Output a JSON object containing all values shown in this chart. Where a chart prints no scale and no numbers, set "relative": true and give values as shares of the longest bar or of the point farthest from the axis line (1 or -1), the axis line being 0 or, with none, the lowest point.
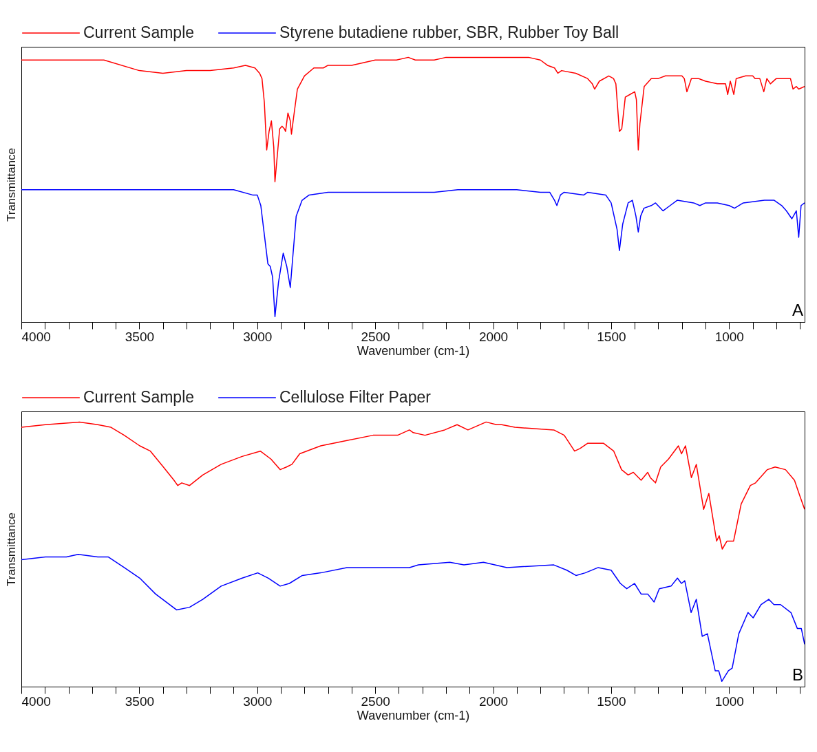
{
  "chart_data": [
    {
      "type": "line",
      "relative": true,
      "xlabel": "Wavenumber (cm-1)",
      "ylabel": "Transmittance",
      "legend": "top",
      "grid": false,
      "annotations": [
        "A"
      ],
      "xlim": [
        4000,
        680
      ],
      "xticks": [
        4000,
        {
          "value": 3900,
          "label": null
        },
        {
          "value": 3800,
          "label": null
        },
        {
          "value": 3700,
          "label": null
        },
        {
          "value": 3600,
          "label": null
        },
        3500,
        {
          "value": 3400,
          "label": null
        },
        {
          "value": 3300,
          "label": null
        },
        {
          "value": 3200,
          "label": null
        },
        {
          "value": 3100,
          "label": null
        },
        3000,
        {
          "value": 2900,
          "label": null
        },
        {
          "value": 2800,
          "label": null
        },
        {
          "value": 2700,
          "label": null
        },
        {
          "value": 2600,
          "label": null
        },
        2500,
        {
          "value": 2400,
          "label": null
        },
        {
          "value": 2300,
          "label": null
        },
        {
          "value": 2200,
          "label": null
        },
        {
          "value": 2100,
          "label": null
        },
        2000,
        {
          "value": 1900,
          "label": null
        },
        {
          "value": 1800,
          "label": null
        },
        {
          "value": 1700,
          "label": null
        },
        {
          "value": 1600,
          "label": null
        },
        1500,
        {
          "value": 1400,
          "label": null
        },
        {
          "value": 1300,
          "label": null
        },
        {
          "value": 1200,
          "label": null
        },
        {
          "value": 1100,
          "label": null
        },
        1000,
        {
          "value": 900,
          "label": null
        },
        {
          "value": 800,
          "label": null
        },
        {
          "value": 700,
          "label": null
        }
      ],
      "series": [
        {
          "name": "Current Sample",
          "color": "#ff0000",
          "x": [
            4000,
            3800,
            3700,
            3650,
            3500,
            3400,
            3300,
            3200,
            3100,
            3050,
            3010,
            2990,
            2980,
            2970,
            2960,
            2950,
            2940,
            2930,
            2925,
            2915,
            2905,
            2895,
            2885,
            2880,
            2870,
            2860,
            2855,
            2845,
            2830,
            2800,
            2760,
            2720,
            2700,
            2600,
            2500,
            2410,
            2360,
            2330,
            2250,
            2200,
            2150,
            2050,
            2000,
            1950,
            1850,
            1800,
            1770,
            1740,
            1726,
            1710,
            1650,
            1600,
            1580,
            1570,
            1550,
            1510,
            1490,
            1480,
            1465,
            1455,
            1440,
            1420,
            1400,
            1393,
            1385,
            1378,
            1360,
            1330,
            1300,
            1270,
            1200,
            1190,
            1179,
            1160,
            1130,
            1100,
            1050,
            1015,
            1006,
            995,
            980,
            970,
            930,
            900,
            890,
            870,
            853,
            840,
            825,
            800,
            740,
            729,
            715,
            705,
            680
          ],
          "values": [
            0.99,
            0.99,
            0.99,
            0.99,
            0.95,
            0.94,
            0.95,
            0.95,
            0.96,
            0.97,
            0.96,
            0.94,
            0.92,
            0.83,
            0.65,
            0.72,
            0.76,
            0.66,
            0.53,
            0.63,
            0.73,
            0.74,
            0.73,
            0.72,
            0.79,
            0.76,
            0.71,
            0.78,
            0.88,
            0.93,
            0.96,
            0.96,
            0.97,
            0.97,
            0.99,
            0.99,
            1.0,
            0.99,
            0.99,
            1.0,
            1.0,
            1.0,
            1.0,
            1.0,
            1.0,
            0.99,
            0.97,
            0.96,
            0.94,
            0.95,
            0.94,
            0.92,
            0.9,
            0.88,
            0.91,
            0.93,
            0.92,
            0.9,
            0.72,
            0.73,
            0.85,
            0.86,
            0.87,
            0.84,
            0.65,
            0.75,
            0.89,
            0.92,
            0.92,
            0.93,
            0.93,
            0.92,
            0.87,
            0.92,
            0.92,
            0.91,
            0.9,
            0.9,
            0.86,
            0.91,
            0.86,
            0.92,
            0.93,
            0.93,
            0.92,
            0.92,
            0.87,
            0.92,
            0.9,
            0.92,
            0.92,
            0.88,
            0.89,
            0.88,
            0.89
          ]
        },
        {
          "name": "Styrene butadiene rubber, SBR, Rubber Toy Ball",
          "color": "#0000ff",
          "x": [
            4000,
            3700,
            3300,
            3100,
            3020,
            3000,
            2985,
            2970,
            2955,
            2945,
            2935,
            2925,
            2910,
            2890,
            2875,
            2860,
            2850,
            2835,
            2810,
            2780,
            2700,
            2600,
            2500,
            2400,
            2250,
            2150,
            2000,
            1900,
            1800,
            1760,
            1740,
            1730,
            1715,
            1700,
            1616,
            1600,
            1523,
            1500,
            1475,
            1465,
            1451,
            1428,
            1410,
            1395,
            1385,
            1375,
            1361,
            1330,
            1312,
            1280,
            1250,
            1220,
            1150,
            1124,
            1100,
            1050,
            1000,
            977,
            940,
            850,
            809,
            777,
            757,
            734,
            715,
            705,
            695,
            680
          ],
          "values": [
            0.5,
            0.5,
            0.5,
            0.5,
            0.48,
            0.48,
            0.44,
            0.33,
            0.22,
            0.21,
            0.17,
            0.02,
            0.15,
            0.26,
            0.21,
            0.13,
            0.24,
            0.4,
            0.46,
            0.48,
            0.49,
            0.49,
            0.49,
            0.49,
            0.49,
            0.5,
            0.5,
            0.5,
            0.49,
            0.49,
            0.46,
            0.44,
            0.48,
            0.49,
            0.48,
            0.49,
            0.48,
            0.45,
            0.35,
            0.27,
            0.37,
            0.45,
            0.46,
            0.4,
            0.34,
            0.4,
            0.43,
            0.44,
            0.45,
            0.42,
            0.44,
            0.46,
            0.45,
            0.44,
            0.45,
            0.45,
            0.44,
            0.43,
            0.45,
            0.46,
            0.46,
            0.44,
            0.42,
            0.39,
            0.42,
            0.32,
            0.44,
            0.45
          ]
        }
      ]
    },
    {
      "type": "line",
      "relative": true,
      "xlabel": "Wavenumber (cm-1)",
      "ylabel": "Transmittance",
      "legend": "top",
      "grid": false,
      "annotations": [
        "B"
      ],
      "xlim": [
        4000,
        680
      ],
      "xticks": [
        4000,
        {
          "value": 3900,
          "label": null
        },
        {
          "value": 3800,
          "label": null
        },
        {
          "value": 3700,
          "label": null
        },
        {
          "value": 3600,
          "label": null
        },
        3500,
        {
          "value": 3400,
          "label": null
        },
        {
          "value": 3300,
          "label": null
        },
        {
          "value": 3200,
          "label": null
        },
        {
          "value": 3100,
          "label": null
        },
        3000,
        {
          "value": 2900,
          "label": null
        },
        {
          "value": 2800,
          "label": null
        },
        {
          "value": 2700,
          "label": null
        },
        {
          "value": 2600,
          "label": null
        },
        2500,
        {
          "value": 2400,
          "label": null
        },
        {
          "value": 2300,
          "label": null
        },
        {
          "value": 2200,
          "label": null
        },
        {
          "value": 2100,
          "label": null
        },
        2000,
        {
          "value": 1900,
          "label": null
        },
        {
          "value": 1800,
          "label": null
        },
        {
          "value": 1700,
          "label": null
        },
        {
          "value": 1600,
          "label": null
        },
        1500,
        {
          "value": 1400,
          "label": null
        },
        {
          "value": 1300,
          "label": null
        },
        {
          "value": 1200,
          "label": null
        },
        {
          "value": 1100,
          "label": null
        },
        1000,
        {
          "value": 900,
          "label": null
        },
        {
          "value": 800,
          "label": null
        },
        {
          "value": 700,
          "label": null
        }
      ],
      "series": [
        {
          "name": "Current Sample",
          "color": "#ff0000",
          "x": [
            4000,
            3898,
            3753,
            3676,
            3620,
            3564,
            3498,
            3453,
            3398,
            3353,
            3337,
            3320,
            3287,
            3231,
            3153,
            3064,
            2987,
            2942,
            2903,
            2876,
            2853,
            2820,
            2731,
            2620,
            2509,
            2405,
            2355,
            2339,
            2289,
            2206,
            2153,
            2107,
            2030,
            1986,
            1964,
            1908,
            1743,
            1699,
            1655,
            1632,
            1599,
            1533,
            1489,
            1456,
            1428,
            1406,
            1373,
            1345,
            1334,
            1312,
            1290,
            1257,
            1215,
            1202,
            1185,
            1160,
            1139,
            1108,
            1086,
            1053,
            1042,
            1029,
            1009,
            981,
            949,
            910,
            888,
            838,
            805,
            761,
            723,
            700,
            680
          ],
          "values": [
            0.98,
            0.99,
            1.0,
            0.99,
            0.98,
            0.95,
            0.91,
            0.89,
            0.83,
            0.78,
            0.76,
            0.77,
            0.76,
            0.8,
            0.84,
            0.87,
            0.89,
            0.86,
            0.82,
            0.83,
            0.84,
            0.88,
            0.91,
            0.93,
            0.95,
            0.95,
            0.97,
            0.96,
            0.95,
            0.97,
            0.99,
            0.97,
            1.0,
            0.99,
            0.99,
            0.98,
            0.97,
            0.95,
            0.89,
            0.9,
            0.92,
            0.92,
            0.89,
            0.82,
            0.8,
            0.81,
            0.78,
            0.81,
            0.79,
            0.77,
            0.83,
            0.86,
            0.91,
            0.88,
            0.91,
            0.79,
            0.84,
            0.67,
            0.73,
            0.55,
            0.57,
            0.52,
            0.55,
            0.55,
            0.69,
            0.76,
            0.77,
            0.82,
            0.83,
            0.82,
            0.78,
            0.72,
            0.67
          ]
        },
        {
          "name": "Cellulose Filter Paper",
          "color": "#0000ff",
          "x": [
            4000,
            3898,
            3809,
            3759,
            3676,
            3631,
            3564,
            3498,
            3431,
            3342,
            3287,
            3231,
            3153,
            3064,
            2998,
            2953,
            2903,
            2864,
            2809,
            2731,
            2620,
            2509,
            2405,
            2355,
            2317,
            2184,
            2124,
            2041,
            1942,
            1743,
            1688,
            1649,
            1610,
            1555,
            1500,
            1461,
            1434,
            1401,
            1373,
            1345,
            1318,
            1296,
            1246,
            1219,
            1202,
            1188,
            1161,
            1139,
            1114,
            1092,
            1059,
            1044,
            1031,
            1003,
            987,
            959,
            920,
            898,
            865,
            832,
            810,
            782,
            738,
            711,
            694,
            680
          ],
          "values": [
            0.48,
            0.49,
            0.49,
            0.5,
            0.49,
            0.49,
            0.45,
            0.41,
            0.35,
            0.29,
            0.3,
            0.33,
            0.38,
            0.41,
            0.43,
            0.41,
            0.38,
            0.39,
            0.42,
            0.43,
            0.45,
            0.45,
            0.45,
            0.45,
            0.46,
            0.47,
            0.46,
            0.47,
            0.45,
            0.46,
            0.44,
            0.42,
            0.43,
            0.45,
            0.44,
            0.39,
            0.37,
            0.39,
            0.35,
            0.35,
            0.32,
            0.37,
            0.38,
            0.41,
            0.39,
            0.4,
            0.28,
            0.33,
            0.19,
            0.2,
            0.06,
            0.06,
            0.02,
            0.06,
            0.07,
            0.2,
            0.28,
            0.26,
            0.31,
            0.33,
            0.31,
            0.31,
            0.28,
            0.22,
            0.22,
            0.16
          ]
        }
      ]
    }
  ]
}
